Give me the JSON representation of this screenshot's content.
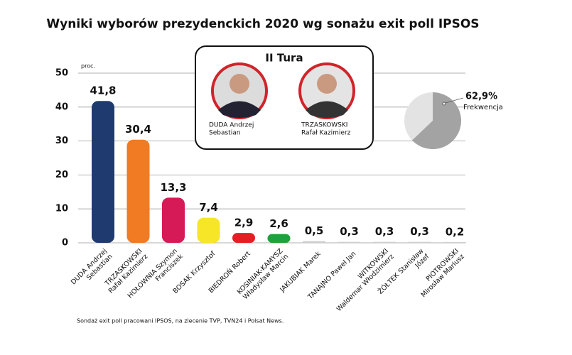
{
  "chart_data": {
    "type": "bar",
    "title": "Wyniki wyborów prezydenckich 2020 wg sonażu exit poll IPSOS",
    "y_unit": "proc.",
    "categories": [
      [
        "DUDA Andrzej",
        "Sebastian"
      ],
      [
        "TRZASKOWSKI",
        "Rafał Kazimierz"
      ],
      [
        "HOŁOWNIA Szymon",
        "Franciszek"
      ],
      [
        "BOSAK Krzysztof"
      ],
      [
        "BIEDROŃ Robert"
      ],
      [
        "KOSINIAK-KAMYSZ",
        "Władysław Marcin"
      ],
      [
        "JAKUBIAK Marek"
      ],
      [
        "TANAJNO Paweł Jan"
      ],
      [
        "WITKOWSKI",
        "Waldemar Włodzimierz"
      ],
      [
        "ŻÓŁTEK Stanisław",
        "Józef"
      ],
      [
        "PIOTROWSKI",
        "Mirosław Mariusz"
      ]
    ],
    "values": [
      41.8,
      30.4,
      13.3,
      7.4,
      2.9,
      2.6,
      0.5,
      0.3,
      0.3,
      0.3,
      0.2
    ],
    "value_labels": [
      "41,8",
      "30,4",
      "13,3",
      "7,4",
      "2,9",
      "2,6",
      "0,5",
      "0,3",
      "0,3",
      "0,3",
      "0,2"
    ],
    "colors": [
      "#1f3a6e",
      "#f07b22",
      "#d61a57",
      "#f6e627",
      "#e31e24",
      "#1fa23b",
      "#cfcfcf",
      "#cfcfcf",
      "#cfcfcf",
      "#cfcfcf",
      "#cfcfcf"
    ],
    "ylim": [
      0,
      50
    ],
    "yticks": [
      0,
      10,
      20,
      30,
      40,
      50
    ],
    "grid": true,
    "inset": {
      "title": "II Tura",
      "candidates": [
        [
          "DUDA Andrzej",
          "Sebastian"
        ],
        [
          "TRZASKOWSKI",
          "Rafał Kazimierz"
        ]
      ]
    },
    "turnout": {
      "value": 62.9,
      "label": "62,9%",
      "caption": "Frekwencja",
      "color": "#a3a3a3"
    },
    "note": "Sondaż exit poll pracowani IPSOS, na zlecenie TVP, TVN24 i Polsat News."
  }
}
